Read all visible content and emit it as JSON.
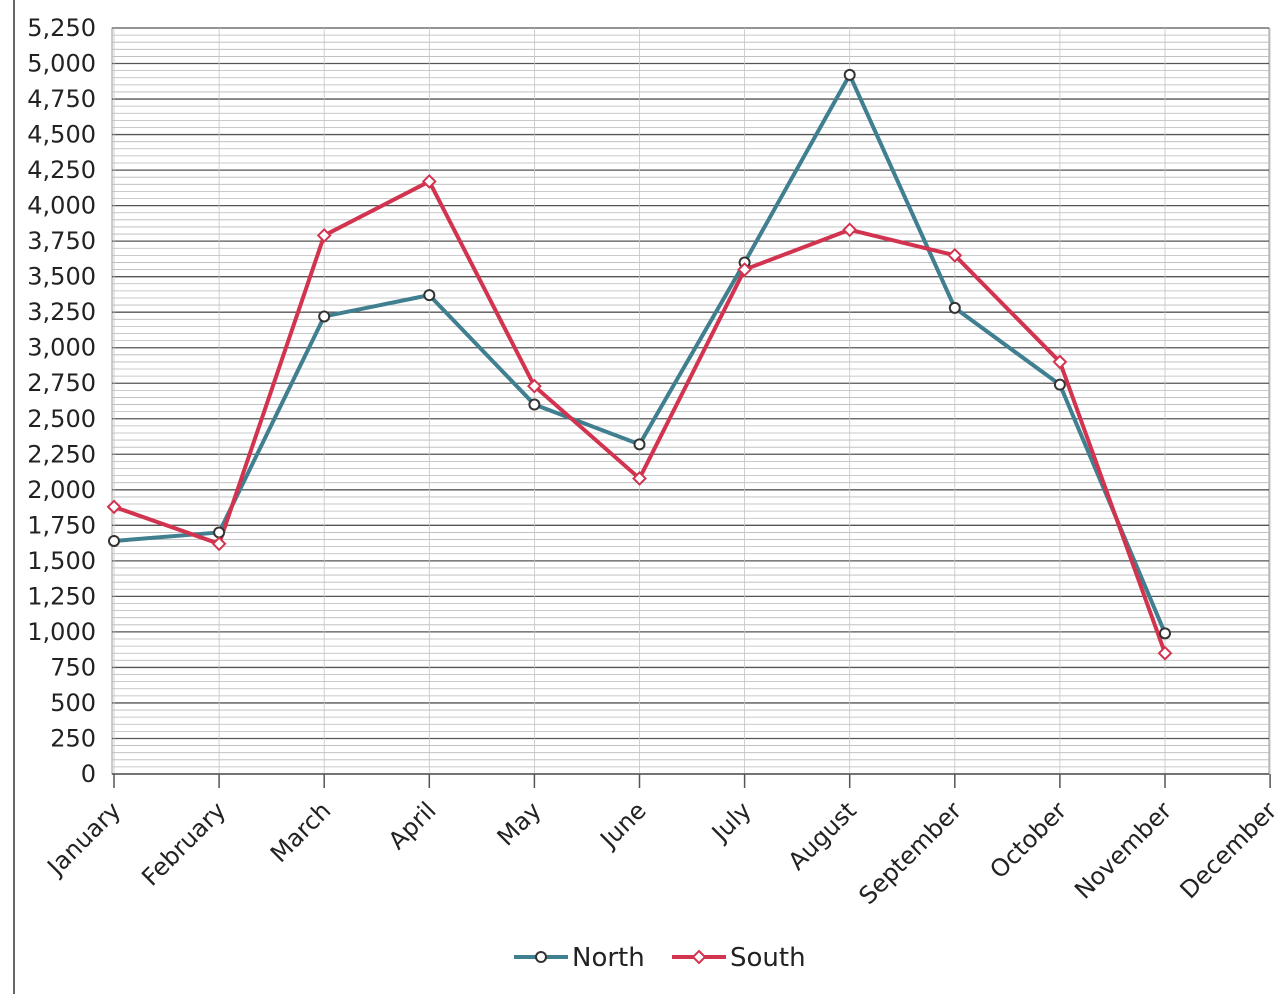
{
  "chart_data": {
    "type": "line",
    "title": "",
    "xlabel": "",
    "ylabel": "",
    "categories": [
      "January",
      "February",
      "March",
      "April",
      "May",
      "June",
      "July",
      "August",
      "September",
      "October",
      "November",
      "December"
    ],
    "ylim": [
      0,
      5250
    ],
    "ytick_step": 250,
    "ytick_labels": [
      "0",
      "250",
      "500",
      "750",
      "1,000",
      "1,250",
      "1,500",
      "1,750",
      "2,000",
      "2,250",
      "2,500",
      "2,750",
      "3,000",
      "3,250",
      "3,500",
      "3,750",
      "4,000",
      "4,250",
      "4,500",
      "4,750",
      "5,000",
      "5,250"
    ],
    "grid": true,
    "legend_position": "bottom",
    "series": [
      {
        "name": "North",
        "color": "#3f7f8f",
        "marker": "circle",
        "values": [
          1640,
          1700,
          3220,
          3370,
          2600,
          2320,
          3600,
          4920,
          3280,
          2740,
          990,
          null
        ]
      },
      {
        "name": "South",
        "color": "#d2344f",
        "marker": "diamond",
        "values": [
          1880,
          1620,
          3790,
          4170,
          2730,
          2080,
          3550,
          3830,
          3650,
          2900,
          850,
          null
        ]
      }
    ]
  }
}
